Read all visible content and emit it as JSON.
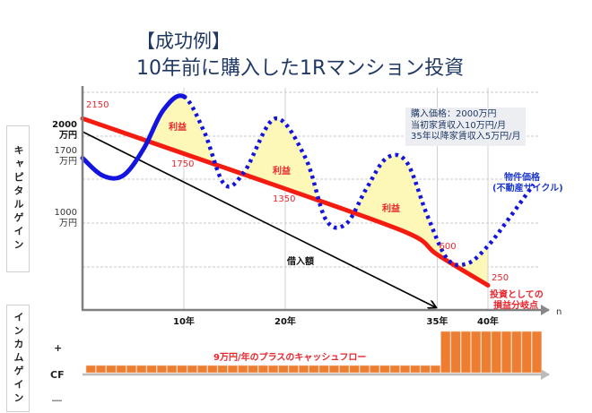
{
  "title": {
    "line1": "【成功例】",
    "line2": "10年前に購入した1Rマンション投資"
  },
  "side_labels": {
    "capital_gain": "キャピタルゲイン",
    "income_gain": "インカムゲイン"
  },
  "info_box": [
    "購入価格：2000万円",
    "当初家賃収入10万円/月",
    "35年以降家賃収入5万円/月"
  ],
  "income_axis": {
    "plus": "+",
    "cf": "CF",
    "minus": "―"
  },
  "colors": {
    "property_price": "#1414e0",
    "breakeven": "#f41c10",
    "loan": "#000000",
    "profit_fill": "#fdf8b8",
    "cashflow": "#ed7d31",
    "title": "#1f3864"
  },
  "chart_data": [
    {
      "type": "line",
      "title": "キャピタルゲイン",
      "xlabel": "n",
      "ylabel": "",
      "x_ticks": [
        {
          "x": 10,
          "label": "10年"
        },
        {
          "x": 20,
          "label": "20年"
        },
        {
          "x": 35,
          "label": "35年"
        },
        {
          "x": 40,
          "label": "40年"
        }
      ],
      "y_ticks": [
        {
          "y": 2000,
          "label_value": "2000",
          "label_unit": "万円",
          "bold": true
        },
        {
          "y": 1700,
          "label_value": "1700",
          "label_unit": "万円",
          "bold": false
        },
        {
          "y": 1000,
          "label_value": "1000",
          "label_unit": "万円",
          "bold": false
        }
      ],
      "xlim": [
        0,
        45
      ],
      "ylim": [
        0,
        2400
      ],
      "grid": true,
      "series": [
        {
          "name": "投資としての損益分岐点",
          "style": "solid-thick",
          "x": [
            0,
            10,
            20,
            32,
            35,
            40
          ],
          "y": [
            2150,
            1750,
            1350,
            850,
            600,
            250
          ],
          "point_labels": [
            {
              "x": 0,
              "y": 2150,
              "text": "2150"
            },
            {
              "x": 10,
              "y": 1750,
              "text": "1750"
            },
            {
              "x": 20,
              "y": 1350,
              "text": "1350"
            },
            {
              "x": 35,
              "y": 600,
              "text": "600"
            },
            {
              "x": 40,
              "y": 250,
              "text": "250"
            }
          ]
        },
        {
          "name": "物件価格(不動産サイクル)",
          "style": "solid-then-dotted",
          "solid_until_x": 10,
          "x": [
            0,
            2,
            4,
            6,
            8,
            10,
            12,
            14,
            16,
            19,
            22,
            24,
            26,
            28,
            30,
            32,
            34,
            36,
            38,
            40,
            42,
            44.5
          ],
          "y": [
            1700,
            1500,
            1500,
            1800,
            2250,
            2400,
            2000,
            1400,
            1550,
            2150,
            1700,
            1000,
            950,
            1350,
            1700,
            1650,
            1050,
            550,
            500,
            700,
            1000,
            1400
          ]
        },
        {
          "name": "借入額",
          "style": "solid-arrow",
          "x": [
            0,
            35
          ],
          "y": [
            2000,
            0
          ]
        }
      ],
      "annotations": [
        {
          "text": "利益",
          "x": 9,
          "y": 1950
        },
        {
          "text": "利益",
          "x": 20,
          "y": 1650
        },
        {
          "text": "利益",
          "x": 31,
          "y": 1150
        },
        {
          "text": "借入額",
          "x": 22,
          "y": 550
        },
        {
          "text": "物件価格",
          "x": 42,
          "y": 1600
        },
        {
          "text": "(不動産サイクル)",
          "x": 42,
          "y": 1450
        },
        {
          "text": "投資としての",
          "x": 41,
          "y": 150
        },
        {
          "text": "損益分岐点",
          "x": 41,
          "y": 0
        }
      ]
    },
    {
      "type": "bar",
      "title": "インカムゲイン",
      "note": "9万円/年のプラスのキャッシュフロー",
      "x": [
        0,
        1,
        2,
        3,
        4,
        5,
        6,
        7,
        8,
        9,
        10,
        11,
        12,
        13,
        14,
        15,
        16,
        17,
        18,
        19,
        20,
        21,
        22,
        23,
        24,
        25,
        26,
        27,
        28,
        29,
        30,
        31,
        32,
        33,
        34,
        35,
        36,
        37,
        38,
        39,
        40,
        41,
        42,
        43,
        44
      ],
      "values": [
        9,
        9,
        9,
        9,
        9,
        9,
        9,
        9,
        9,
        9,
        9,
        9,
        9,
        9,
        9,
        9,
        9,
        9,
        9,
        9,
        9,
        9,
        9,
        9,
        9,
        9,
        9,
        9,
        9,
        9,
        9,
        9,
        9,
        9,
        9,
        60,
        60,
        60,
        60,
        60,
        60,
        60,
        60,
        60,
        60
      ],
      "unit": "万円/年"
    }
  ]
}
